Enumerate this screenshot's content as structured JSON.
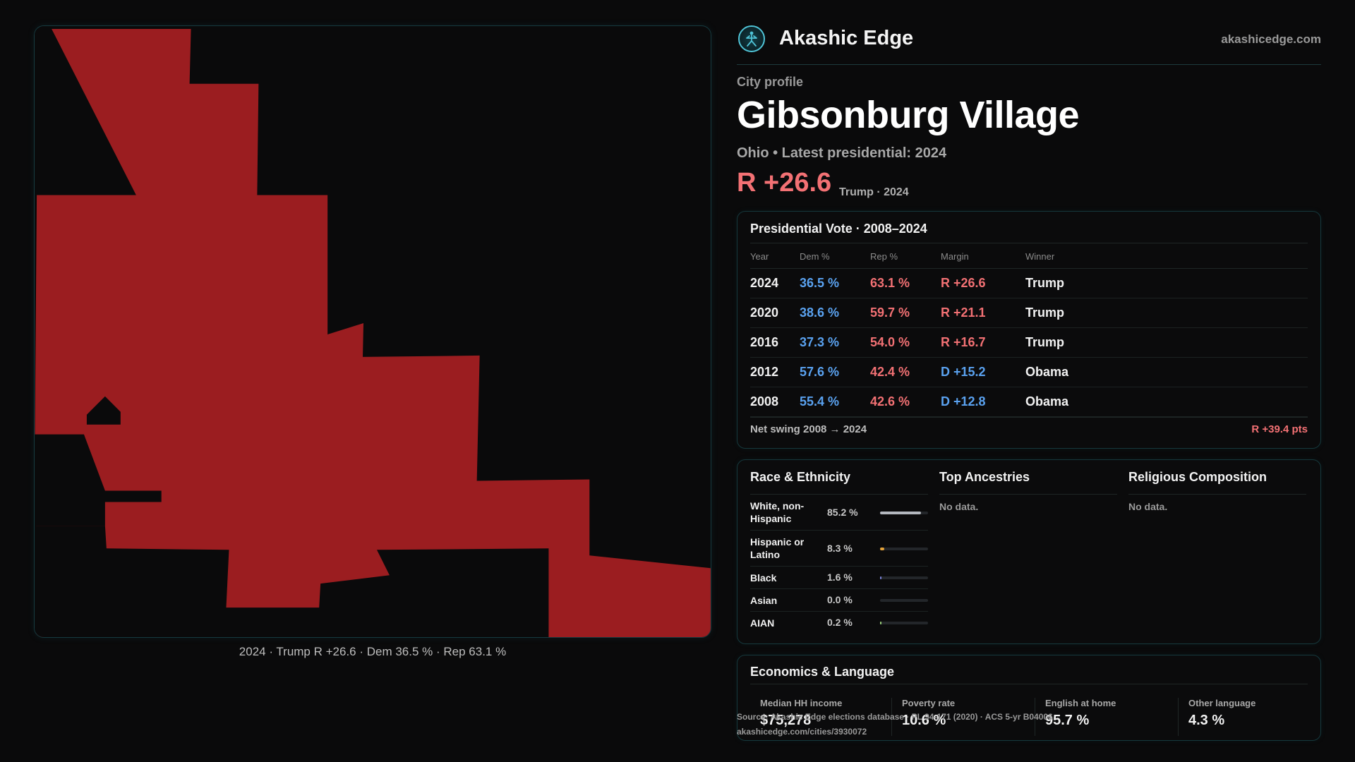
{
  "map": {
    "fill_color": "#9b1d20",
    "background_color": "#0a0a0b",
    "caption": "2024 · Trump R +26.6 · Dem 36.5 % · Rep 63.1 %"
  },
  "header": {
    "brand_name": "Akashic Edge",
    "brand_url": "akashicedge.com",
    "logo_icon": "akashic-figure-icon"
  },
  "profile": {
    "kicker": "City profile",
    "city_name": "Gibsonburg Village",
    "subtitle": "Ohio • Latest presidential: 2024",
    "margin": "R +26.6",
    "margin_note": "Trump · 2024"
  },
  "vote": {
    "title": "Presidential Vote · 2008–2024",
    "headers": {
      "year": "Year",
      "dem": "Dem %",
      "rep": "Rep %",
      "margin": "Margin",
      "winner": "Winner"
    },
    "rows": [
      {
        "year": "2024",
        "dem": "36.5 %",
        "rep": "63.1 %",
        "margin": "R +26.6",
        "winner": "Trump"
      },
      {
        "year": "2020",
        "dem": "38.6 %",
        "rep": "59.7 %",
        "margin": "R +21.1",
        "winner": "Trump"
      },
      {
        "year": "2016",
        "dem": "37.3 %",
        "rep": "54.0 %",
        "margin": "R +16.7",
        "winner": "Trump"
      },
      {
        "year": "2012",
        "dem": "57.6 %",
        "rep": "42.4 %",
        "margin": "D +15.2",
        "winner": "Obama"
      },
      {
        "year": "2008",
        "dem": "55.4 %",
        "rep": "42.6 %",
        "margin": "D +12.8",
        "winner": "Obama"
      }
    ],
    "swing_label": "Net swing 2008 → 2024",
    "swing_value": "R +39.4 pts"
  },
  "demographics": {
    "race_title": "Race & Ethnicity",
    "ancestries_title": "Top Ancestries",
    "ancestries_empty": "No data.",
    "religion_title": "Religious Composition",
    "religion_empty": "No data.",
    "race_rows": [
      {
        "name": "White, non-Hispanic",
        "pct": "85.2 %",
        "share": 0.852,
        "color": "#b4b8bf"
      },
      {
        "name": "Hispanic or Latino",
        "pct": "8.3 %",
        "share": 0.083,
        "color": "#e2a23a"
      },
      {
        "name": "Black",
        "pct": "1.6 %",
        "share": 0.016,
        "color": "#7b82d9"
      },
      {
        "name": "Asian",
        "pct": "0.0 %",
        "share": 0.0,
        "color": "#4fc3d6"
      },
      {
        "name": "AIAN",
        "pct": "0.2 %",
        "share": 0.002,
        "color": "#9ad07a"
      }
    ]
  },
  "economics": {
    "title": "Economics & Language",
    "stats": [
      {
        "label": "Median HH income",
        "value": "$75,278"
      },
      {
        "label": "Poverty rate",
        "value": "10.6 %"
      },
      {
        "label": "English at home",
        "value": "95.7 %"
      },
      {
        "label": "Other language",
        "value": "4.3 %"
      }
    ]
  },
  "source": {
    "line1": "Source: Akashic Edge elections database · PL 94-171 (2020) · ACS 5-yr B04006",
    "line2": "akashicedge.com/cities/3930072"
  }
}
